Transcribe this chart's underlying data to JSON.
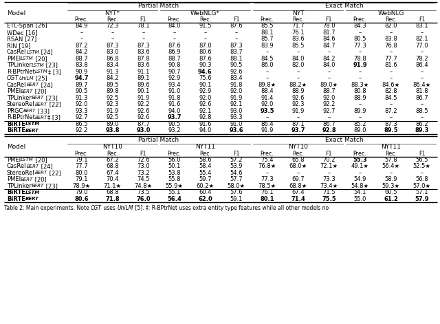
{
  "fig_width": 6.4,
  "fig_height": 4.71,
  "caption": "Table 2: Main experiments. Note CGT uses UniLM [5]. ‡: R-BPtrNet uses extra entity type features while all other models no",
  "table1": {
    "sub_groups1": [
      "NYT*",
      "WebNLG*",
      "NYT",
      "WebNLG"
    ],
    "sub_headers": [
      "Prec.",
      "Rec.",
      "F1",
      "Prec.",
      "Rec.",
      "F1",
      "Prec.",
      "Rec.",
      "F1",
      "Prec.",
      "Rec.",
      "F1"
    ],
    "rows": [
      {
        "model": [
          [
            "ETL-Span [26]",
            "normal",
            6.0
          ]
        ],
        "vals": [
          "84.9",
          "72.3",
          "78.1",
          "84.0",
          "91.5",
          "87.6",
          "85.5",
          "71.7",
          "78.0",
          "84.3",
          "82.0",
          "83.1"
        ],
        "bold": []
      },
      {
        "model": [
          [
            "WDec [16]",
            "normal",
            6.0
          ]
        ],
        "vals": [
          "–",
          "–",
          "–",
          "–",
          "–",
          "–",
          "88.1",
          "76.1",
          "81.7",
          "–",
          "–",
          "–"
        ],
        "bold": []
      },
      {
        "model": [
          [
            "RSAN [27]",
            "normal",
            6.0
          ]
        ],
        "vals": [
          "–",
          "–",
          "–",
          "–",
          "–",
          "–",
          "85.7",
          "83.6",
          "84.6",
          "80.5",
          "83.8",
          "82.1"
        ],
        "bold": []
      },
      {
        "model": [
          [
            "RIN [19]",
            "normal",
            6.0
          ]
        ],
        "vals": [
          "87.2",
          "87.3",
          "87.3",
          "87.6",
          "87.0",
          "87.3",
          "83.9",
          "85.5",
          "84.7",
          "77.3",
          "76.8",
          "77.0"
        ],
        "bold": []
      },
      {
        "model": [
          [
            "CasRel",
            "normal",
            6.0
          ],
          [
            "LSTM",
            "italic",
            5.0
          ],
          [
            " [24]",
            "normal",
            6.0
          ]
        ],
        "vals": [
          "84.2",
          "83.0",
          "83.6",
          "86.9",
          "80.6",
          "83.7",
          "–",
          "–",
          "–",
          "–",
          "–",
          "–"
        ],
        "bold": []
      },
      {
        "model": [
          [
            "PMEI",
            "normal",
            6.0
          ],
          [
            "LSTM",
            "italic",
            5.0
          ],
          [
            " [20]",
            "normal",
            6.0
          ]
        ],
        "vals": [
          "88.7",
          "86.8",
          "87.8",
          "88.7",
          "87.6",
          "88.1",
          "84.5",
          "84.0",
          "84.2",
          "78.8",
          "77.7",
          "78.2"
        ],
        "bold": []
      },
      {
        "model": [
          [
            "TPLinker",
            "normal",
            6.0
          ],
          [
            "LSTM",
            "italic",
            5.0
          ],
          [
            " [23]",
            "normal",
            6.0
          ]
        ],
        "vals": [
          "83.8",
          "83.4",
          "83.6",
          "90.8",
          "90.3",
          "90.5",
          "86.0",
          "82.0",
          "84.0",
          "91.9",
          "81.6",
          "86.4"
        ],
        "bold": [
          9
        ]
      },
      {
        "model": [
          [
            "R-BPtrNet",
            "normal",
            6.0
          ],
          [
            "LSTM",
            "italic",
            5.0
          ],
          [
            "‡ [3]",
            "normal",
            6.0
          ]
        ],
        "vals": [
          "90.9",
          "91.3",
          "91.1",
          "90.7",
          "94.6",
          "92.6",
          "–",
          "–",
          "–",
          "–",
          "–",
          "–"
        ],
        "bold": [
          4
        ]
      },
      {
        "model": [
          [
            "CGT",
            "italic",
            6.0
          ],
          [
            "UniLM",
            "italic",
            5.0
          ],
          [
            " [25]",
            "normal",
            6.0
          ]
        ],
        "vals": [
          "94.7",
          "84.2",
          "89.1",
          "92.9",
          "75.6",
          "83.4",
          "–",
          "–",
          "–",
          "–",
          "–",
          "–"
        ],
        "bold": [
          0
        ]
      },
      {
        "model": [
          [
            "CasRel",
            "normal",
            6.0
          ],
          [
            "BERT",
            "italic",
            5.0
          ],
          [
            " [24]",
            "normal",
            6.0
          ]
        ],
        "vals": [
          "89.7",
          "89.5",
          "89.6",
          "93.4",
          "90.1",
          "91.8",
          "89.8★",
          "88.2★",
          "89.0★",
          "88.3★",
          "84.6★",
          "86.4★"
        ],
        "bold": []
      },
      {
        "model": [
          [
            "PMEI",
            "normal",
            6.0
          ],
          [
            "BERT",
            "italic",
            5.0
          ],
          [
            " [20]",
            "normal",
            6.0
          ]
        ],
        "vals": [
          "90.5",
          "89.8",
          "90.1",
          "91.0",
          "92.9",
          "92.0",
          "88.4",
          "88.9",
          "88.7",
          "80.8",
          "82.8",
          "81.8"
        ],
        "bold": []
      },
      {
        "model": [
          [
            "TPLinker",
            "normal",
            6.0
          ],
          [
            "BERT",
            "italic",
            5.0
          ],
          [
            " [23]",
            "normal",
            6.0
          ]
        ],
        "vals": [
          "91.3",
          "92.5",
          "91.9",
          "91.8",
          "92.0",
          "91.9",
          "91.4",
          "92.6",
          "92.0",
          "88.9",
          "84.5",
          "86.7"
        ],
        "bold": []
      },
      {
        "model": [
          [
            "StereoRel",
            "normal",
            6.0
          ],
          [
            "BERT",
            "italic",
            5.0
          ],
          [
            " [22]",
            "normal",
            6.0
          ]
        ],
        "vals": [
          "92.0",
          "92.3",
          "92.2",
          "91.6",
          "92.6",
          "92.1",
          "92.0",
          "92.3",
          "92.2",
          "–",
          "–",
          "–"
        ],
        "bold": []
      },
      {
        "model": [
          [
            "PRGC",
            "normal",
            6.0
          ],
          [
            "BERT",
            "italic",
            5.0
          ],
          [
            " [33]",
            "normal",
            6.0
          ]
        ],
        "vals": [
          "93.3",
          "91.9",
          "92.6",
          "94.0",
          "92.1",
          "93.0",
          "93.5",
          "91.9",
          "92.7",
          "89.9",
          "87.2",
          "88.5"
        ],
        "bold": [
          6
        ]
      },
      {
        "model": [
          [
            "R-BPtrNet",
            "normal",
            6.0
          ],
          [
            "BERT",
            "italic",
            5.0
          ],
          [
            "‡ [3]",
            "normal",
            6.0
          ]
        ],
        "vals": [
          "92.7",
          "92.5",
          "92.6",
          "93.7",
          "92.8",
          "93.3",
          "–",
          "–",
          "–",
          "–",
          "–",
          "–"
        ],
        "bold": [
          3
        ]
      },
      {
        "model": [
          [
            "BiRTE",
            "bold",
            6.0
          ],
          [
            "LSTM",
            "bold-italic",
            5.0
          ]
        ],
        "vals": [
          "86.5",
          "89.0",
          "87.7",
          "90.5",
          "91.6",
          "91.0",
          "86.4",
          "87.1",
          "86.7",
          "85.2",
          "87.3",
          "86.2"
        ],
        "bold": [],
        "birte": true
      },
      {
        "model": [
          [
            "BiRTE",
            "bold",
            6.0
          ],
          [
            "BERT",
            "bold-italic",
            5.0
          ]
        ],
        "vals": [
          "92.2",
          "93.8",
          "93.0",
          "93.2",
          "94.0",
          "93.6",
          "91.9",
          "93.7",
          "92.8",
          "89.0",
          "89.5",
          "89.3"
        ],
        "bold": [
          1,
          2,
          5,
          7,
          8,
          10,
          11
        ],
        "birte": true
      }
    ]
  },
  "table2": {
    "sub_groups1": [
      "NYT10",
      "NYT11",
      "NYT10",
      "NYT11"
    ],
    "sub_headers": [
      "Prec.",
      "Rec.",
      "F1",
      "Prec.",
      "Rec.",
      "F1",
      "Prec.",
      "Rec.",
      "F1",
      "Prec.",
      "Rec.",
      "F1"
    ],
    "rows": [
      {
        "model": [
          [
            "PMEI",
            "normal",
            6.0
          ],
          [
            "LSTM",
            "italic",
            5.0
          ],
          [
            " [20]",
            "normal",
            6.0
          ]
        ],
        "vals": [
          "79.1",
          "67.2",
          "72.6",
          "56.0",
          "58.6",
          "57.2",
          "75.4",
          "65.8",
          "70.2",
          "55.3",
          "57.8",
          "56.5"
        ],
        "bold": [
          9
        ]
      },
      {
        "model": [
          [
            "CasRel",
            "normal",
            6.0
          ],
          [
            "BERT",
            "italic",
            5.0
          ],
          [
            " [24]",
            "normal",
            6.0
          ]
        ],
        "vals": [
          "77.7",
          "68.8",
          "73.0",
          "50.1",
          "58.4",
          "53.9",
          "76.8★",
          "68.0★",
          "72.1★",
          "49.1★",
          "56.4★",
          "52.5★"
        ],
        "bold": []
      },
      {
        "model": [
          [
            "StereoRel",
            "normal",
            6.0
          ],
          [
            "BERT",
            "italic",
            5.0
          ],
          [
            " [22]",
            "normal",
            6.0
          ]
        ],
        "vals": [
          "80.0",
          "67.4",
          "73.2",
          "53.8",
          "55.4",
          "54.6",
          "–",
          "–",
          "–",
          "–",
          "–",
          "–"
        ],
        "bold": []
      },
      {
        "model": [
          [
            "PMEI",
            "normal",
            6.0
          ],
          [
            "BERT",
            "italic",
            5.0
          ],
          [
            " [20]",
            "normal",
            6.0
          ]
        ],
        "vals": [
          "79.1",
          "70.4",
          "74.5",
          "55.8",
          "59.7",
          "57.7",
          "77.3",
          "69.7",
          "73.3",
          "54.9",
          "58.9",
          "56.8"
        ],
        "bold": []
      },
      {
        "model": [
          [
            "TPLinker",
            "normal",
            6.0
          ],
          [
            "BERT",
            "italic",
            5.0
          ],
          [
            " [23]",
            "normal",
            6.0
          ]
        ],
        "vals": [
          "78.9★",
          "71.1★",
          "74.8★",
          "55.9★",
          "60.2★",
          "58.0★",
          "78.5★",
          "68.8★",
          "73.4★",
          "54.8★",
          "59.3★",
          "57.0★"
        ],
        "bold": []
      },
      {
        "model": [
          [
            "BiRTE",
            "bold",
            6.0
          ],
          [
            "LSTM",
            "bold-italic",
            5.0
          ]
        ],
        "vals": [
          "79.0",
          "68.8",
          "73.5",
          "55.1",
          "60.4",
          "57.6",
          "76.1",
          "67.4",
          "71.5",
          "54.1",
          "60.5",
          "57.1"
        ],
        "bold": [],
        "birte": true
      },
      {
        "model": [
          [
            "BiRTE",
            "bold",
            6.0
          ],
          [
            "BERT",
            "bold-italic",
            5.0
          ]
        ],
        "vals": [
          "80.6",
          "71.8",
          "76.0",
          "56.4",
          "62.0",
          "59.1",
          "80.1",
          "71.4",
          "75.5",
          "55.0",
          "61.2",
          "57.9"
        ],
        "bold": [
          0,
          1,
          2,
          3,
          4,
          6,
          7,
          8,
          10,
          11
        ],
        "birte": true
      }
    ]
  }
}
